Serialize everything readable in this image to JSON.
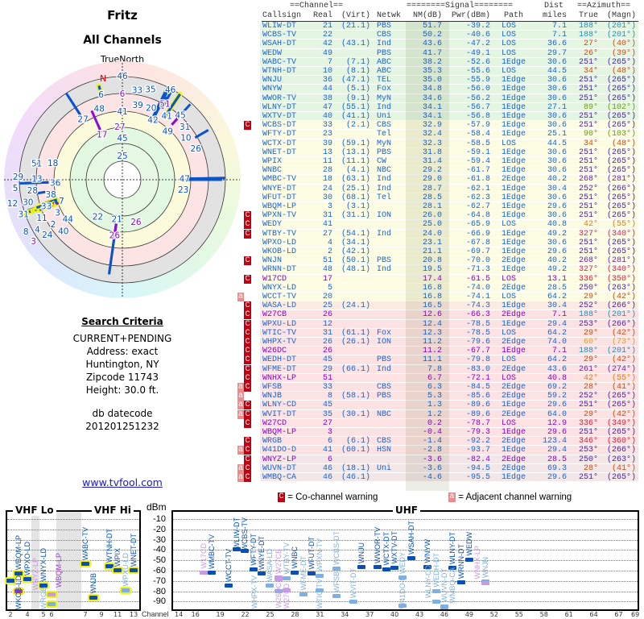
{
  "title": "Fritz",
  "subtitle": "All Channels",
  "polar": {
    "north_label": "TrueNorth",
    "n_marker": "N"
  },
  "criteria": {
    "heading": "Search Criteria",
    "lines": [
      "CURRENT+PENDING",
      "Address: exact",
      "Huntington, NY",
      "Zipcode 11743",
      "Height: 30.0 ft."
    ],
    "db_label": "db datecode",
    "db_value": "201201251232"
  },
  "site_link": "www.tvfool.com",
  "table": {
    "group_headers": {
      "channel": "==Channel==",
      "signal": "========Signal========",
      "dist": "Dist",
      "azimuth": "==Azimuth=="
    },
    "headers": {
      "callsign": "Callsign",
      "real": "Real",
      "virt": "(Virt)",
      "netwk": "Netwk",
      "nm": "NM(dB)",
      "pwr": "Pwr(dBm)",
      "path": "Path",
      "dist": "miles",
      "true": "True",
      "magn": "(Magn)"
    },
    "band_colors": {
      "green": "#e4f6e2",
      "yellow": "#fcfce2",
      "orange": "#fcebe0",
      "pink": "#fce2e2",
      "gray": "#f2e6e6"
    },
    "text_colors": {
      "normal": "#1a64d4",
      "lp": "#9000d0"
    },
    "az_colors": {
      "teal": "#2a8cb4",
      "orange": "#d24a12",
      "purple": "#4a26a6",
      "olive": "#6a9c12",
      "amber": "#e07c14",
      "crimson": "#d2245e",
      "red": "#e01c3c",
      "gold": "#e0a024",
      "violet": "#6a24b4"
    },
    "fields": [
      "warn",
      "callsign",
      "real",
      "virt",
      "netwk",
      "nm",
      "pwr",
      "path",
      "dist",
      "true",
      "magn",
      "band",
      "az",
      "lp"
    ],
    "rows": [
      [
        "",
        "WLIW-DT",
        "21",
        "(21.1)",
        "PBS",
        "51.7",
        "-39.2",
        "LOS",
        "7.1",
        "188°",
        "(201°)",
        "green",
        "teal",
        false
      ],
      [
        "",
        "WCBS-TV",
        "22",
        "",
        "CBS",
        "50.2",
        "-40.6",
        "LOS",
        "7.1",
        "188°",
        "(201°)",
        "green",
        "teal",
        false
      ],
      [
        "",
        "WSAH-DT",
        "42",
        "(43.1)",
        "Ind",
        "43.6",
        "-47.2",
        "LOS",
        "36.6",
        "27°",
        "(40°)",
        "green",
        "orange",
        false
      ],
      [
        "",
        "WEDW",
        "49",
        "",
        "PBS",
        "41.7",
        "-49.1",
        "LOS",
        "29.7",
        "26°",
        "(39°)",
        "green",
        "orange",
        false
      ],
      [
        "",
        "WABC-TV",
        "7",
        "(7.1)",
        "ABC",
        "38.2",
        "-52.6",
        "1Edge",
        "30.6",
        "251°",
        "(265°)",
        "green",
        "purple",
        false
      ],
      [
        "",
        "WTNH-DT",
        "10",
        "(8.1)",
        "ABC",
        "35.3",
        "-55.6",
        "LOS",
        "44.5",
        "34°",
        "(48°)",
        "green",
        "orange",
        false
      ],
      [
        "",
        "WNJU",
        "36",
        "(47.1)",
        "TEL",
        "35.0",
        "-55.9",
        "1Edge",
        "30.6",
        "251°",
        "(265°)",
        "green",
        "purple",
        false
      ],
      [
        "",
        "WNYW",
        "44",
        "(5.1)",
        "Fox",
        "34.8",
        "-56.0",
        "1Edge",
        "30.6",
        "251°",
        "(265°)",
        "green",
        "purple",
        false
      ],
      [
        "",
        "WWOR-TV",
        "38",
        "(9.1)",
        "MyN",
        "34.6",
        "-56.2",
        "1Edge",
        "30.6",
        "251°",
        "(265°)",
        "green",
        "purple",
        false
      ],
      [
        "",
        "WLNY-DT",
        "47",
        "(55.1)",
        "Ind",
        "34.1",
        "-56.7",
        "1Edge",
        "27.1",
        "89°",
        "(102°)",
        "green",
        "olive",
        false
      ],
      [
        "",
        "WXTV-DT",
        "40",
        "(41.1)",
        "Uni",
        "34.1",
        "-56.8",
        "1Edge",
        "30.6",
        "251°",
        "(265°)",
        "green",
        "purple",
        false
      ],
      [
        "C",
        "WCBS-DT",
        "33",
        "(2.1)",
        "CBS",
        "32.9",
        "-57.9",
        "1Edge",
        "30.6",
        "251°",
        "(265°)",
        "yellow",
        "purple",
        false
      ],
      [
        "",
        "WFTY-DT",
        "23",
        "",
        "Tel",
        "32.4",
        "-58.4",
        "1Edge",
        "25.1",
        "90°",
        "(103°)",
        "yellow",
        "olive",
        false
      ],
      [
        "",
        "WCTX-DT",
        "39",
        "(59.1)",
        "MyN",
        "32.3",
        "-58.5",
        "LOS",
        "44.5",
        "34°",
        "(48°)",
        "yellow",
        "orange",
        false
      ],
      [
        "",
        "WNET-DT",
        "13",
        "(13.1)",
        "PBS",
        "31.8",
        "-59.1",
        "1Edge",
        "30.6",
        "251°",
        "(265°)",
        "yellow",
        "purple",
        false
      ],
      [
        "",
        "WPIX",
        "11",
        "(11.1)",
        "CW",
        "31.4",
        "-59.4",
        "1Edge",
        "30.6",
        "251°",
        "(265°)",
        "yellow",
        "purple",
        false
      ],
      [
        "",
        "WNBC",
        "28",
        "(4.1)",
        "NBC",
        "29.2",
        "-61.7",
        "1Edge",
        "30.6",
        "251°",
        "(265°)",
        "yellow",
        "purple",
        false
      ],
      [
        "",
        "WMBC-TV",
        "18",
        "(63.1)",
        "Ind",
        "29.0",
        "-61.8",
        "2Edge",
        "40.2",
        "268°",
        "(281°)",
        "yellow",
        "violet",
        false
      ],
      [
        "",
        "WNYE-DT",
        "24",
        "(25.1)",
        "Ind",
        "28.7",
        "-62.1",
        "1Edge",
        "30.4",
        "252°",
        "(266°)",
        "yellow",
        "purple",
        false
      ],
      [
        "",
        "WFUT-DT",
        "30",
        "(68.1)",
        "Tel",
        "28.5",
        "-62.3",
        "1Edge",
        "30.6",
        "251°",
        "(265°)",
        "yellow",
        "purple",
        false
      ],
      [
        "",
        "WBQM-LP",
        "3",
        "(3.1)",
        "",
        "28.1",
        "-62.7",
        "1Edge",
        "29.6",
        "251°",
        "(265°)",
        "yellow",
        "purple",
        false
      ],
      [
        "C",
        "WPXN-TV",
        "31",
        "(31.1)",
        "ION",
        "26.0",
        "-64.8",
        "1Edge",
        "30.6",
        "251°",
        "(265°)",
        "yellow",
        "purple",
        false
      ],
      [
        "C",
        "WEDY",
        "41",
        "",
        "",
        "25.0",
        "-65.9",
        "LOS",
        "40.8",
        "42°",
        "(55°)",
        "yellow",
        "amber",
        false
      ],
      [
        "C",
        "WTBY-TV",
        "27",
        "(54.1)",
        "Ind",
        "24.0",
        "-66.9",
        "1Edge",
        "49.2",
        "327°",
        "(340°)",
        "yellow",
        "crimson",
        false
      ],
      [
        "",
        "WPXO-LD",
        "4",
        "(34.1)",
        "",
        "23.1",
        "-67.8",
        "1Edge",
        "30.6",
        "251°",
        "(265°)",
        "yellow",
        "purple",
        false
      ],
      [
        "",
        "WKOB-LD",
        "2",
        "(42.1)",
        "",
        "21.1",
        "-69.7",
        "1Edge",
        "29.6",
        "251°",
        "(265°)",
        "yellow",
        "purple",
        false
      ],
      [
        "C",
        "WNJN",
        "51",
        "(50.1)",
        "PBS",
        "20.8",
        "-70.0",
        "2Edge",
        "40.2",
        "268°",
        "(281°)",
        "yellow",
        "violet",
        false
      ],
      [
        "",
        "WRNN-DT",
        "48",
        "(48.1)",
        "Ind",
        "19.5",
        "-71.3",
        "1Edge",
        "49.2",
        "327°",
        "(340°)",
        "yellow",
        "crimson",
        false
      ],
      [
        "C",
        "W17CD",
        "17",
        "",
        "",
        "17.4",
        "-61.5",
        "LOS",
        "13.1",
        "336°",
        "(350°)",
        "yellow",
        "red",
        true
      ],
      [
        "",
        "WNYX-LD",
        "5",
        "",
        "",
        "16.8",
        "-74.0",
        "2Edge",
        "28.5",
        "250°",
        "(263°)",
        "yellow",
        "purple",
        false
      ],
      [
        "a",
        "WCCT-TV",
        "20",
        "",
        "",
        "16.8",
        "-74.1",
        "LOS",
        "64.2",
        "29°",
        "(42°)",
        "yellow",
        "orange",
        false
      ],
      [
        "C",
        "WASA-LD",
        "25",
        "(24.1)",
        "",
        "16.5",
        "-74.3",
        "1Edge",
        "30.4",
        "252°",
        "(266°)",
        "orange",
        "purple",
        false
      ],
      [
        "C",
        "W27CB",
        "26",
        "",
        "",
        "12.6",
        "-66.3",
        "2Edge",
        "7.1",
        "188°",
        "(201°)",
        "pink",
        "teal",
        true
      ],
      [
        "C",
        "WPXU-LD",
        "12",
        "",
        "",
        "12.4",
        "-78.5",
        "1Edge",
        "29.4",
        "253°",
        "(266°)",
        "pink",
        "purple",
        false
      ],
      [
        "C",
        "WTIC-TV",
        "31",
        "(61.1)",
        "Fox",
        "12.3",
        "-78.5",
        "LOS",
        "64.2",
        "29°",
        "(42°)",
        "pink",
        "orange",
        false
      ],
      [
        "C",
        "WHPX-TV",
        "26",
        "(26.1)",
        "ION",
        "11.2",
        "-79.6",
        "2Edge",
        "74.0",
        "60°",
        "(73°)",
        "pink",
        "gold",
        false
      ],
      [
        "C",
        "W26DC",
        "26",
        "",
        "",
        "11.2",
        "-67.7",
        "1Edge",
        "7.1",
        "188°",
        "(201°)",
        "pink",
        "teal",
        true
      ],
      [
        "C",
        "WEDH-DT",
        "45",
        "",
        "PBS",
        "11.1",
        "-79.8",
        "LOS",
        "64.2",
        "29°",
        "(42°)",
        "pink",
        "orange",
        false
      ],
      [
        "C",
        "WFME-DT",
        "29",
        "(66.1)",
        "Ind",
        "7.8",
        "-83.0",
        "2Edge",
        "43.6",
        "261°",
        "(274°)",
        "pink",
        "violet",
        false
      ],
      [
        "C",
        "WNHX-LP",
        "51",
        "",
        "",
        "6.7",
        "-72.1",
        "LOS",
        "40.8",
        "42°",
        "(55°)",
        "pink",
        "amber",
        true
      ],
      [
        "aC",
        "WFSB",
        "33",
        "",
        "CBS",
        "6.3",
        "-84.5",
        "2Edge",
        "69.2",
        "28°",
        "(41°)",
        "pink",
        "orange",
        false
      ],
      [
        "a",
        "WNJB",
        "8",
        "(58.1)",
        "PBS",
        "5.3",
        "-85.6",
        "2Edge",
        "59.2",
        "252°",
        "(265°)",
        "pink",
        "purple",
        false
      ],
      [
        "aC",
        "WLNY-CD",
        "45",
        "",
        "",
        "1.3",
        "-89.6",
        "1Edge",
        "29.6",
        "251°",
        "(265°)",
        "pink",
        "purple",
        false
      ],
      [
        "aC",
        "WVIT-DT",
        "35",
        "(30.1)",
        "NBC",
        "1.2",
        "-89.6",
        "2Edge",
        "64.0",
        "29°",
        "(42°)",
        "pink",
        "orange",
        false
      ],
      [
        "C",
        "W27CD",
        "27",
        "",
        "",
        "0.2",
        "-78.7",
        "LOS",
        "12.9",
        "336°",
        "(349°)",
        "pink",
        "red",
        true
      ],
      [
        "",
        "WBQM-LP",
        "3",
        "",
        "",
        "-0.4",
        "-79.3",
        "1Edge",
        "29.6",
        "251°",
        "(265°)",
        "pink",
        "purple",
        true
      ],
      [
        "C",
        "WRGB",
        "6",
        "(6.1)",
        "CBS",
        "-1.4",
        "-92.2",
        "2Edge",
        "123.4",
        "346°",
        "(360°)",
        "pink",
        "red",
        false
      ],
      [
        "aC",
        "W41DO-D",
        "41",
        "(60.1)",
        "HSN",
        "-2.8",
        "-93.7",
        "1Edge",
        "29.4",
        "253°",
        "(266°)",
        "pink",
        "purple",
        false
      ],
      [
        "C",
        "WNYZ-LP",
        "6",
        "",
        "",
        "-3.6",
        "-82.4",
        "2Edge",
        "28.5",
        "250°",
        "(263°)",
        "gray",
        "purple",
        true
      ],
      [
        "aC",
        "WUVN-DT",
        "46",
        "(18.1)",
        "Uni",
        "-3.6",
        "-94.5",
        "2Edge",
        "69.3",
        "28°",
        "(41°)",
        "gray",
        "orange",
        false
      ],
      [
        "aC",
        "WMBQ-CA",
        "46",
        "(46.1)",
        "",
        "-4.6",
        "-95.5",
        "1Edge",
        "29.6",
        "251°",
        "(265°)",
        "gray",
        "purple",
        false
      ]
    ]
  },
  "legend": {
    "co_badge": "C",
    "co_text": "= Co-channel warning",
    "adj_badge": "a",
    "adj_text": "= Adjacent channel warning"
  },
  "spectrum": {
    "vhf_lo": "VHF Lo",
    "vhf_hi": "VHF Hi",
    "uhf": "UHF",
    "y_unit": "dBm",
    "x_label": "Channel",
    "y_ticks": [
      -10,
      -20,
      -30,
      -40,
      -50,
      -60,
      -70,
      -80,
      -90
    ],
    "vhf_ticks": [
      2,
      4,
      5,
      6,
      7,
      9,
      11,
      13
    ],
    "uhf_ticks": [
      14,
      16,
      19,
      22,
      25,
      28,
      31,
      34,
      37,
      40,
      43,
      46,
      49,
      52,
      55,
      58,
      61,
      64,
      67,
      69
    ],
    "marker_colors": {
      "strong": "#0b4fb4",
      "weak": "#7fb0e4",
      "lp": "#a040d8",
      "lp_weak": "#c89ae4",
      "vhf_ring": "#f2f20a"
    }
  }
}
